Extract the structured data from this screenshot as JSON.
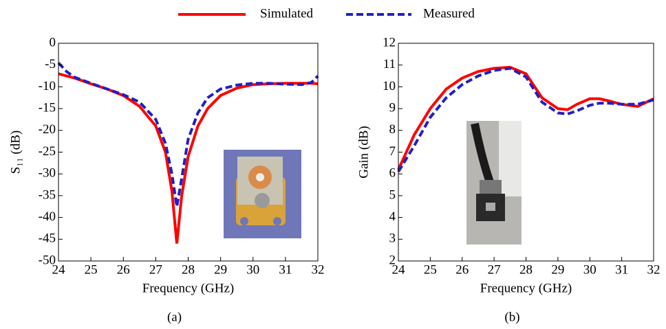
{
  "chart_data": [
    {
      "type": "line",
      "caption": "(a)",
      "x_label": "Frequency (GHz)",
      "y_label": "S₁₁ (dB)",
      "x": [
        24,
        24.25,
        24.5,
        25,
        25.5,
        26,
        26.5,
        27,
        27.3,
        27.5,
        27.65,
        27.8,
        28,
        28.3,
        28.6,
        29,
        29.5,
        30,
        30.5,
        31,
        31.5,
        31.8,
        32
      ],
      "series": [
        {
          "name": "Simulated",
          "color": "#ff0000",
          "dash": "solid",
          "values": [
            -7,
            -7.5,
            -8,
            -9.3,
            -10.5,
            -12,
            -14.5,
            -19,
            -25,
            -34,
            -46,
            -35,
            -26,
            -19,
            -15,
            -12,
            -10.3,
            -9.5,
            -9.3,
            -9.2,
            -9.2,
            -9.2,
            -9.3
          ]
        },
        {
          "name": "Measured",
          "color": "#2020c0",
          "dash": "dashed",
          "values": [
            -4.5,
            -6.5,
            -7.8,
            -9.2,
            -10.5,
            -11.8,
            -13.5,
            -17.5,
            -23,
            -30,
            -37.5,
            -31,
            -22,
            -16,
            -12.5,
            -10.5,
            -9.6,
            -9.2,
            -9.2,
            -9.4,
            -9.5,
            -9,
            -7.5
          ]
        }
      ],
      "xlim": [
        24,
        32
      ],
      "xticks": [
        24,
        25,
        26,
        27,
        28,
        29,
        30,
        31,
        32
      ],
      "ylim": [
        -50,
        0
      ],
      "yticks": [
        0,
        -5,
        -10,
        -15,
        -20,
        -25,
        -30,
        -35,
        -40,
        -45,
        -50
      ]
    },
    {
      "type": "line",
      "caption": "(b)",
      "x_label": "Frequency (GHz)",
      "y_label": "Gain (dB)",
      "x": [
        24,
        24.5,
        25,
        25.5,
        26,
        26.5,
        27,
        27.5,
        28,
        28.5,
        29,
        29.3,
        29.6,
        30,
        30.3,
        30.6,
        31,
        31.5,
        32
      ],
      "series": [
        {
          "color": "#ff0000",
          "dash": "solid",
          "values": [
            6.2,
            7.8,
            9.0,
            9.9,
            10.4,
            10.7,
            10.85,
            10.9,
            10.6,
            9.5,
            9.0,
            8.95,
            9.2,
            9.45,
            9.45,
            9.35,
            9.2,
            9.1,
            9.45
          ]
        },
        {
          "color": "#2020c0",
          "dash": "dashed",
          "values": [
            6.1,
            7.3,
            8.6,
            9.5,
            10.1,
            10.5,
            10.75,
            10.85,
            10.45,
            9.3,
            8.8,
            8.75,
            8.9,
            9.15,
            9.25,
            9.25,
            9.2,
            9.2,
            9.4
          ]
        }
      ],
      "xlim": [
        24,
        32
      ],
      "xticks": [
        24,
        25,
        26,
        27,
        28,
        29,
        30,
        31,
        32
      ],
      "ylim": [
        2,
        12
      ],
      "yticks": [
        2,
        3,
        4,
        5,
        6,
        7,
        8,
        9,
        10,
        11,
        12
      ]
    }
  ]
}
